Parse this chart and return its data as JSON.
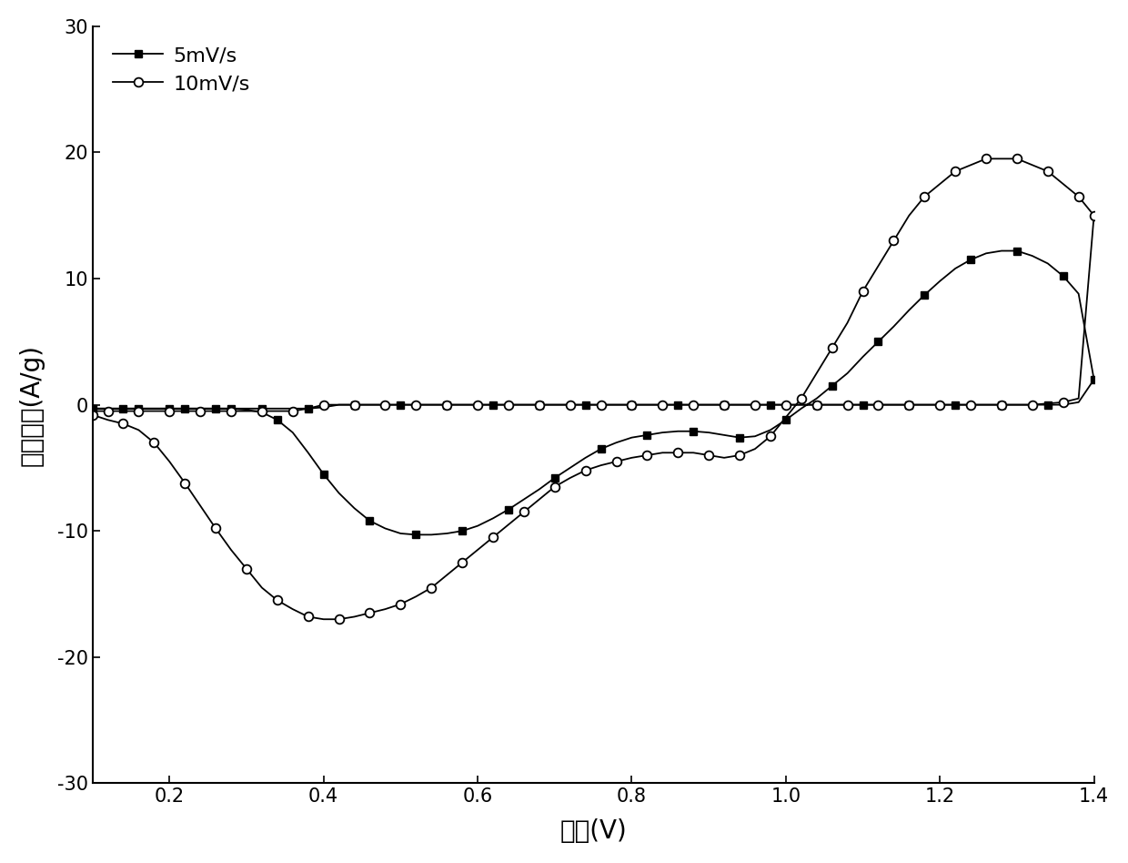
{
  "xlabel": "电压(V)",
  "ylabel": "电流密度(A/g)",
  "xlim": [
    0.1,
    1.4
  ],
  "ylim": [
    -30,
    30
  ],
  "xticks": [
    0.2,
    0.4,
    0.6,
    0.8,
    1.0,
    1.2,
    1.4
  ],
  "yticks": [
    -30,
    -20,
    -10,
    0,
    10,
    20,
    30
  ],
  "legend_labels": [
    "5mV/s",
    "10mV/s"
  ],
  "background_color": "white",
  "series_5mv_fwd_x": [
    0.1,
    0.12,
    0.14,
    0.16,
    0.18,
    0.2,
    0.22,
    0.24,
    0.26,
    0.28,
    0.3,
    0.32,
    0.34,
    0.36,
    0.38,
    0.4,
    0.42,
    0.44,
    0.46,
    0.48,
    0.5,
    0.52,
    0.54,
    0.56,
    0.58,
    0.6,
    0.62,
    0.64,
    0.66,
    0.68,
    0.7,
    0.72,
    0.74,
    0.76,
    0.78,
    0.8,
    0.82,
    0.84,
    0.86,
    0.88,
    0.9,
    0.92,
    0.94,
    0.96,
    0.98,
    1.0,
    1.02,
    1.04,
    1.06,
    1.08,
    1.1,
    1.12,
    1.14,
    1.16,
    1.18,
    1.2,
    1.22,
    1.24,
    1.26,
    1.28,
    1.3,
    1.32,
    1.34,
    1.36,
    1.38,
    1.4
  ],
  "series_5mv_fwd_y": [
    -0.3,
    -0.3,
    -0.3,
    -0.3,
    -0.3,
    -0.3,
    -0.3,
    -0.3,
    -0.3,
    -0.3,
    -0.4,
    -0.6,
    -1.2,
    -2.2,
    -3.8,
    -5.5,
    -7.0,
    -8.2,
    -9.2,
    -9.8,
    -10.2,
    -10.3,
    -10.3,
    -10.2,
    -10.0,
    -9.6,
    -9.0,
    -8.3,
    -7.5,
    -6.7,
    -5.8,
    -5.0,
    -4.2,
    -3.5,
    -3.0,
    -2.6,
    -2.4,
    -2.2,
    -2.1,
    -2.1,
    -2.2,
    -2.4,
    -2.6,
    -2.5,
    -2.0,
    -1.2,
    -0.3,
    0.5,
    1.5,
    2.5,
    3.8,
    5.0,
    6.2,
    7.5,
    8.7,
    9.8,
    10.8,
    11.5,
    12.0,
    12.2,
    12.2,
    11.8,
    11.2,
    10.2,
    8.8,
    2.0
  ],
  "series_5mv_ret_x": [
    1.4,
    1.38,
    1.36,
    1.34,
    1.32,
    1.3,
    1.28,
    1.26,
    1.24,
    1.22,
    1.2,
    1.18,
    1.16,
    1.14,
    1.12,
    1.1,
    1.08,
    1.06,
    1.04,
    1.02,
    1.0,
    0.98,
    0.96,
    0.94,
    0.92,
    0.9,
    0.88,
    0.86,
    0.84,
    0.82,
    0.8,
    0.78,
    0.76,
    0.74,
    0.72,
    0.7,
    0.68,
    0.66,
    0.64,
    0.62,
    0.6,
    0.58,
    0.56,
    0.54,
    0.52,
    0.5,
    0.48,
    0.46,
    0.44,
    0.42,
    0.4,
    0.38,
    0.36,
    0.34,
    0.32,
    0.3,
    0.28,
    0.26,
    0.24,
    0.22,
    0.2,
    0.18,
    0.16,
    0.14,
    0.12,
    0.1
  ],
  "series_5mv_ret_y": [
    2.0,
    0.2,
    0.0,
    0.0,
    0.0,
    0.0,
    0.0,
    0.0,
    0.0,
    0.0,
    0.0,
    0.0,
    0.0,
    0.0,
    0.0,
    0.0,
    0.0,
    0.0,
    0.0,
    0.0,
    0.0,
    0.0,
    0.0,
    0.0,
    0.0,
    0.0,
    0.0,
    0.0,
    0.0,
    0.0,
    0.0,
    0.0,
    0.0,
    0.0,
    0.0,
    0.0,
    0.0,
    0.0,
    0.0,
    0.0,
    0.0,
    0.0,
    0.0,
    0.0,
    0.0,
    0.0,
    0.0,
    0.0,
    0.0,
    0.0,
    -0.2,
    -0.3,
    -0.3,
    -0.3,
    -0.3,
    -0.3,
    -0.3,
    -0.3,
    -0.3,
    -0.3,
    -0.3,
    -0.3,
    -0.3,
    -0.3,
    -0.3,
    -0.3
  ],
  "series_10mv_fwd_x": [
    0.1,
    0.12,
    0.14,
    0.16,
    0.18,
    0.2,
    0.22,
    0.24,
    0.26,
    0.28,
    0.3,
    0.32,
    0.34,
    0.36,
    0.38,
    0.4,
    0.42,
    0.44,
    0.46,
    0.48,
    0.5,
    0.52,
    0.54,
    0.56,
    0.58,
    0.6,
    0.62,
    0.64,
    0.66,
    0.68,
    0.7,
    0.72,
    0.74,
    0.76,
    0.78,
    0.8,
    0.82,
    0.84,
    0.86,
    0.88,
    0.9,
    0.92,
    0.94,
    0.96,
    0.98,
    1.0,
    1.02,
    1.04,
    1.06,
    1.08,
    1.1,
    1.12,
    1.14,
    1.16,
    1.18,
    1.2,
    1.22,
    1.24,
    1.26,
    1.28,
    1.3,
    1.32,
    1.34,
    1.36,
    1.38,
    1.4
  ],
  "series_10mv_fwd_y": [
    -0.8,
    -1.2,
    -1.5,
    -2.0,
    -3.0,
    -4.5,
    -6.2,
    -8.0,
    -9.8,
    -11.5,
    -13.0,
    -14.5,
    -15.5,
    -16.2,
    -16.8,
    -17.0,
    -17.0,
    -16.8,
    -16.5,
    -16.2,
    -15.8,
    -15.2,
    -14.5,
    -13.5,
    -12.5,
    -11.5,
    -10.5,
    -9.5,
    -8.5,
    -7.5,
    -6.5,
    -5.8,
    -5.2,
    -4.8,
    -4.5,
    -4.2,
    -4.0,
    -3.8,
    -3.8,
    -3.8,
    -4.0,
    -4.2,
    -4.0,
    -3.5,
    -2.5,
    -1.0,
    0.5,
    2.5,
    4.5,
    6.5,
    9.0,
    11.0,
    13.0,
    15.0,
    16.5,
    17.5,
    18.5,
    19.0,
    19.5,
    19.5,
    19.5,
    19.0,
    18.5,
    17.5,
    16.5,
    15.0
  ],
  "series_10mv_ret_x": [
    1.4,
    1.38,
    1.36,
    1.34,
    1.32,
    1.3,
    1.28,
    1.26,
    1.24,
    1.22,
    1.2,
    1.18,
    1.16,
    1.14,
    1.12,
    1.1,
    1.08,
    1.06,
    1.04,
    1.02,
    1.0,
    0.98,
    0.96,
    0.94,
    0.92,
    0.9,
    0.88,
    0.86,
    0.84,
    0.82,
    0.8,
    0.78,
    0.76,
    0.74,
    0.72,
    0.7,
    0.68,
    0.66,
    0.64,
    0.62,
    0.6,
    0.58,
    0.56,
    0.54,
    0.52,
    0.5,
    0.48,
    0.46,
    0.44,
    0.42,
    0.4,
    0.38,
    0.36,
    0.34,
    0.32,
    0.3,
    0.28,
    0.26,
    0.24,
    0.22,
    0.2,
    0.18,
    0.16,
    0.14,
    0.12,
    0.1
  ],
  "series_10mv_ret_y": [
    15.0,
    0.5,
    0.2,
    0.1,
    0.0,
    0.0,
    0.0,
    0.0,
    0.0,
    0.0,
    0.0,
    0.0,
    0.0,
    0.0,
    0.0,
    0.0,
    0.0,
    0.0,
    0.0,
    0.0,
    0.0,
    0.0,
    0.0,
    0.0,
    0.0,
    0.0,
    0.0,
    0.0,
    0.0,
    0.0,
    0.0,
    0.0,
    0.0,
    0.0,
    0.0,
    0.0,
    0.0,
    0.0,
    0.0,
    0.0,
    0.0,
    0.0,
    0.0,
    0.0,
    0.0,
    0.0,
    0.0,
    0.0,
    0.0,
    0.0,
    0.0,
    -0.3,
    -0.5,
    -0.5,
    -0.5,
    -0.5,
    -0.5,
    -0.5,
    -0.5,
    -0.5,
    -0.5,
    -0.5,
    -0.5,
    -0.5,
    -0.5,
    -0.5
  ]
}
